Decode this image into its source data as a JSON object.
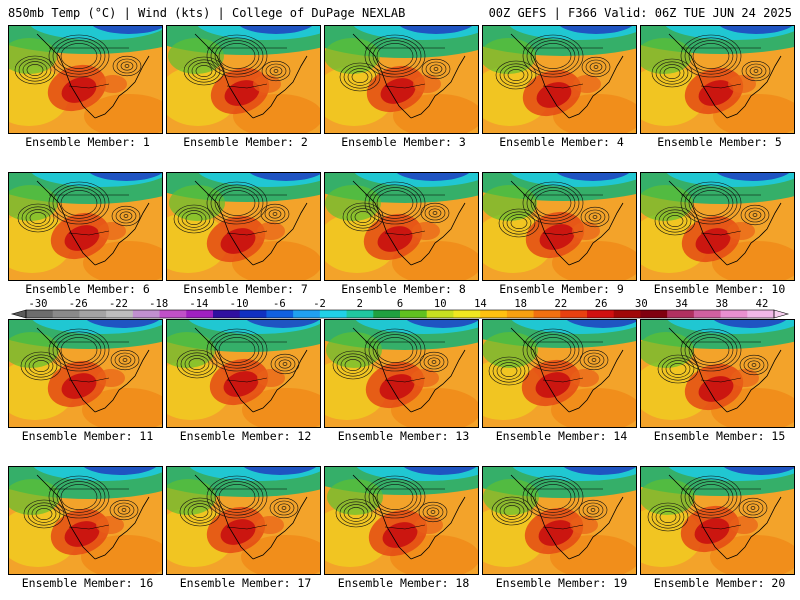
{
  "header": {
    "left_title": "850mb Temp (°C) | Wind (kts) | College of DuPage NEXLAB",
    "right_title": "00Z GEFS | F366 Valid: 06Z TUE JUN 24 2025"
  },
  "colorbar": {
    "tick_labels": [
      "-30",
      "-26",
      "-22",
      "-18",
      "-14",
      "-10",
      "-6",
      "-2",
      "2",
      "6",
      "10",
      "14",
      "18",
      "22",
      "26",
      "30",
      "34",
      "38",
      "42"
    ],
    "colors": [
      "#6d6d6d",
      "#8a8a8a",
      "#a4a4a4",
      "#bdbdbd",
      "#c090d0",
      "#c050c8",
      "#a020c0",
      "#3010a0",
      "#1030c0",
      "#1060e0",
      "#20a0f0",
      "#20d0e8",
      "#20c8a0",
      "#20a040",
      "#60c020",
      "#c8e020",
      "#f0e820",
      "#ffc010",
      "#f8a010",
      "#f07010",
      "#e84010",
      "#d01010",
      "#a00808",
      "#800010",
      "#b03060",
      "#d060a0",
      "#e890d0",
      "#f0b8e8"
    ]
  },
  "panels": [
    {
      "label": "Ensemble Member: 1"
    },
    {
      "label": "Ensemble Member: 2"
    },
    {
      "label": "Ensemble Member: 3"
    },
    {
      "label": "Ensemble Member: 4"
    },
    {
      "label": "Ensemble Member: 5"
    },
    {
      "label": "Ensemble Member: 6"
    },
    {
      "label": "Ensemble Member: 7"
    },
    {
      "label": "Ensemble Member: 8"
    },
    {
      "label": "Ensemble Member: 9"
    },
    {
      "label": "Ensemble Member: 10"
    },
    {
      "label": "Ensemble Member: 11"
    },
    {
      "label": "Ensemble Member: 12"
    },
    {
      "label": "Ensemble Member: 13"
    },
    {
      "label": "Ensemble Member: 14"
    },
    {
      "label": "Ensemble Member: 15"
    },
    {
      "label": "Ensemble Member: 16"
    },
    {
      "label": "Ensemble Member: 17"
    },
    {
      "label": "Ensemble Member: 18"
    },
    {
      "label": "Ensemble Member: 19"
    },
    {
      "label": "Ensemble Member: 20"
    }
  ]
}
